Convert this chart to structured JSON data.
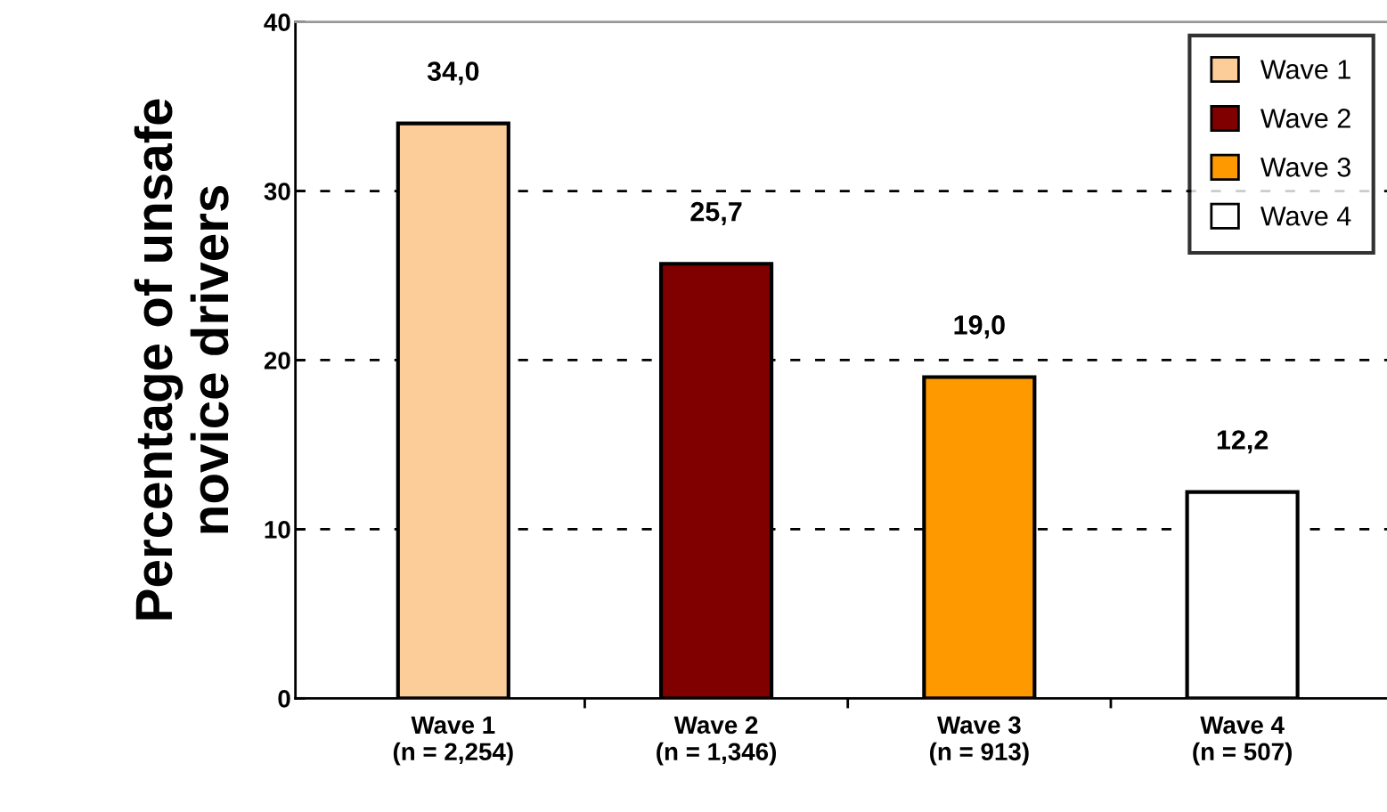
{
  "chart_data": {
    "type": "bar",
    "ylabel": "Percentage of unsafe\nnovice drivers",
    "categories": [
      "Wave 1\n(n = 2,254)",
      "Wave 2\n(n = 1,346)",
      "Wave 3\n(n = 913)",
      "Wave 4\n(n = 507)"
    ],
    "series": [
      {
        "name": "Wave 1",
        "color": "#fccc99",
        "values": [
          34.0,
          null,
          null,
          null
        ],
        "value_labels": [
          "34,0",
          null,
          null,
          null
        ]
      },
      {
        "name": "Wave 2",
        "color": "#800000",
        "values": [
          null,
          25.7,
          null,
          null
        ],
        "value_labels": [
          null,
          "25,7",
          null,
          null
        ]
      },
      {
        "name": "Wave 3",
        "color": "#ff9900",
        "values": [
          null,
          null,
          19.0,
          null
        ],
        "value_labels": [
          null,
          null,
          "19,0",
          null
        ]
      },
      {
        "name": "Wave 4",
        "color": "#ffffff",
        "values": [
          null,
          null,
          null,
          12.2
        ],
        "value_labels": [
          null,
          null,
          null,
          "12,2"
        ]
      }
    ],
    "ylim": [
      0,
      40
    ],
    "yticks": [
      0,
      10,
      20,
      30,
      40
    ],
    "grid": "y",
    "legend": "top right"
  }
}
